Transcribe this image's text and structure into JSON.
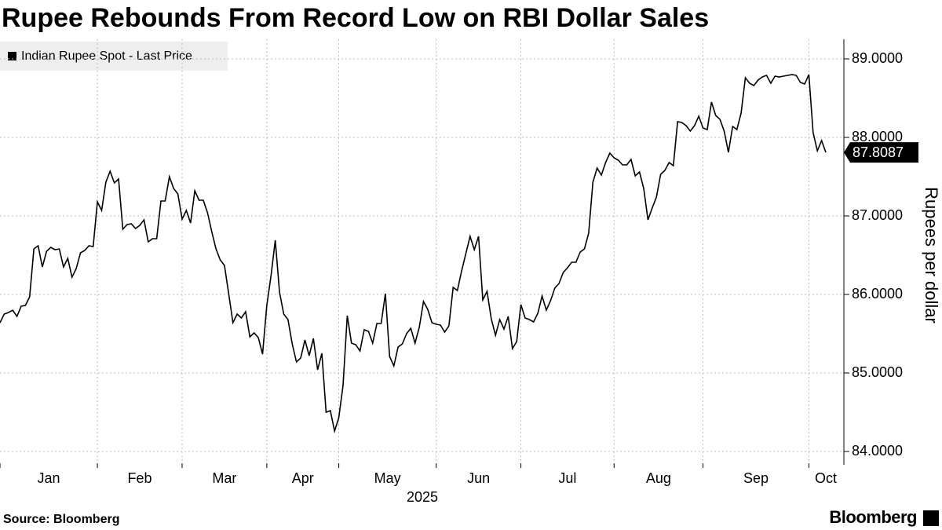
{
  "chart_data": {
    "type": "line",
    "title": "Rupee Rebounds From Record Low on RBI Dollar Sales",
    "y_label": "Rupees per dollar",
    "x_label": "2025",
    "source": "Source: Bloomberg",
    "brand": "Bloomberg",
    "series": [
      {
        "name": "Indian Rupee Spot - Last Price",
        "color": "#000000",
        "values": [
          85.64,
          85.75,
          85.77,
          85.8,
          85.72,
          85.85,
          85.86,
          85.97,
          86.58,
          86.62,
          86.35,
          86.55,
          86.6,
          86.57,
          86.58,
          86.35,
          86.46,
          86.22,
          86.33,
          86.53,
          86.56,
          86.62,
          86.61,
          87.18,
          87.07,
          87.43,
          87.57,
          87.42,
          87.47,
          86.83,
          86.89,
          86.9,
          86.84,
          86.88,
          86.95,
          86.67,
          86.71,
          86.71,
          87.19,
          87.19,
          87.5,
          87.35,
          87.28,
          86.96,
          87.07,
          86.91,
          87.32,
          87.2,
          87.2,
          87.04,
          86.8,
          86.58,
          86.44,
          86.37,
          86.01,
          85.64,
          85.75,
          85.7,
          85.78,
          85.46,
          85.51,
          85.45,
          85.24,
          85.86,
          86.24,
          86.69,
          86.03,
          85.75,
          85.68,
          85.37,
          85.14,
          85.19,
          85.42,
          85.22,
          85.44,
          85.04,
          85.25,
          84.5,
          84.52,
          84.26,
          84.43,
          84.84,
          85.73,
          85.38,
          85.36,
          85.28,
          85.55,
          85.53,
          85.38,
          85.63,
          85.63,
          86.01,
          85.21,
          85.09,
          85.33,
          85.37,
          85.5,
          85.57,
          85.38,
          85.58,
          85.91,
          85.81,
          85.64,
          85.62,
          85.61,
          85.52,
          85.6,
          86.09,
          86.05,
          86.3,
          86.52,
          86.74,
          86.57,
          86.74,
          85.93,
          86.04,
          85.69,
          85.48,
          85.68,
          85.56,
          85.72,
          85.31,
          85.4,
          85.87,
          85.7,
          85.68,
          85.65,
          85.76,
          85.98,
          85.8,
          85.92,
          86.08,
          86.14,
          86.28,
          86.34,
          86.41,
          86.41,
          86.54,
          86.58,
          86.78,
          87.43,
          87.61,
          87.52,
          87.68,
          87.8,
          87.74,
          87.71,
          87.65,
          87.65,
          87.72,
          87.51,
          87.56,
          87.35,
          86.95,
          87.1,
          87.24,
          87.53,
          87.58,
          87.68,
          87.64,
          88.2,
          88.19,
          88.15,
          88.08,
          88.15,
          88.27,
          88.12,
          88.1,
          88.45,
          88.28,
          88.23,
          88.08,
          87.81,
          88.14,
          88.1,
          88.31,
          88.76,
          88.69,
          88.66,
          88.73,
          88.77,
          88.79,
          88.69,
          88.78,
          88.77,
          88.78,
          88.79,
          88.8,
          88.79,
          88.7,
          88.68,
          88.8,
          88.06,
          87.83,
          87.96,
          87.8087
        ]
      }
    ],
    "xlim": [
      0,
      195
    ],
    "xticks": [
      {
        "value": 0,
        "label": "Jan"
      },
      {
        "value": 23,
        "label": "Feb"
      },
      {
        "value": 43,
        "label": "Mar"
      },
      {
        "value": 63,
        "label": "Apr"
      },
      {
        "value": 80,
        "label": "May"
      },
      {
        "value": 103,
        "label": "Jun"
      },
      {
        "value": 123,
        "label": "Jul"
      },
      {
        "value": 145,
        "label": "Aug"
      },
      {
        "value": 166,
        "label": "Sep"
      },
      {
        "value": 191,
        "label": "Oct"
      }
    ],
    "ylim": [
      83.85,
      89.25
    ],
    "yticks": [
      {
        "value": 84,
        "label": "84.0000"
      },
      {
        "value": 85,
        "label": "85.0000"
      },
      {
        "value": 86,
        "label": "86.0000"
      },
      {
        "value": 87,
        "label": "87.0000"
      },
      {
        "value": 88,
        "label": "88.0000"
      },
      {
        "value": 89,
        "label": "89.0000"
      }
    ],
    "grid": true
  }
}
